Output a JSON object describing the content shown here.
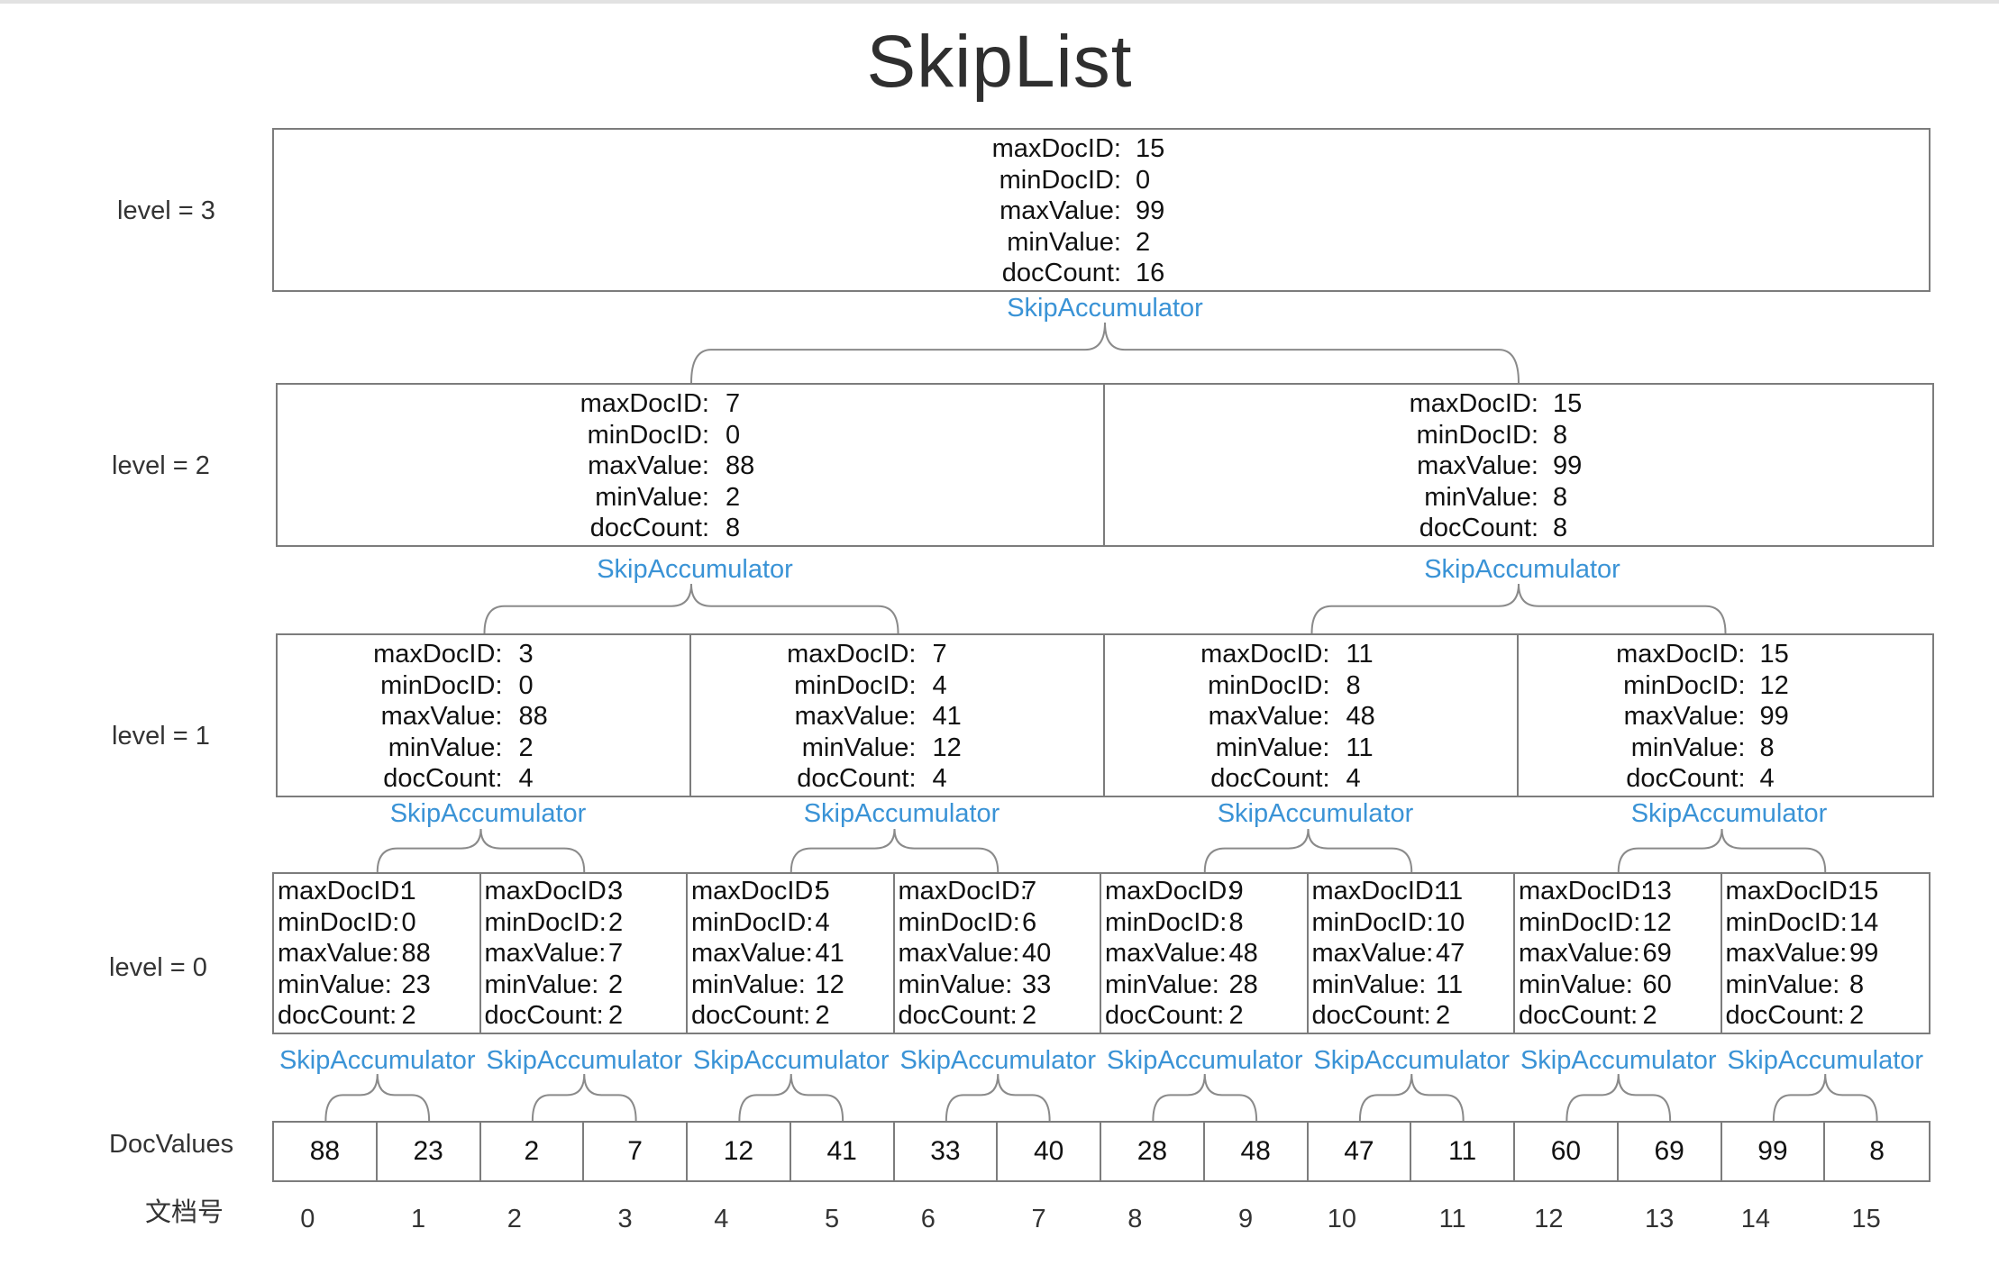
{
  "title": "SkipList",
  "fields": {
    "maxDocID": "maxDocID:",
    "minDocID": "minDocID:",
    "maxValue": "maxValue:",
    "minValue": "minValue:",
    "docCount": "docCount:"
  },
  "accumulator_label": "SkipAccumulator",
  "levels": [
    {
      "label": "level = 3",
      "nodes": [
        {
          "maxDocID": "15",
          "minDocID": "0",
          "maxValue": "99",
          "minValue": "2",
          "docCount": "16"
        }
      ]
    },
    {
      "label": "level = 2",
      "nodes": [
        {
          "maxDocID": "7",
          "minDocID": "0",
          "maxValue": "88",
          "minValue": "2",
          "docCount": "8"
        },
        {
          "maxDocID": "15",
          "minDocID": "8",
          "maxValue": "99",
          "minValue": "8",
          "docCount": "8"
        }
      ]
    },
    {
      "label": "level = 1",
      "nodes": [
        {
          "maxDocID": "3",
          "minDocID": "0",
          "maxValue": "88",
          "minValue": "2",
          "docCount": "4"
        },
        {
          "maxDocID": "7",
          "minDocID": "4",
          "maxValue": "41",
          "minValue": "12",
          "docCount": "4"
        },
        {
          "maxDocID": "11",
          "minDocID": "8",
          "maxValue": "48",
          "minValue": "11",
          "docCount": "4"
        },
        {
          "maxDocID": "15",
          "minDocID": "12",
          "maxValue": "99",
          "minValue": "8",
          "docCount": "4"
        }
      ]
    },
    {
      "label": "level = 0",
      "nodes": [
        {
          "maxDocID": "1",
          "minDocID": "0",
          "maxValue": "88",
          "minValue": "23",
          "docCount": "2"
        },
        {
          "maxDocID": "3",
          "minDocID": "2",
          "maxValue": "7",
          "minValue": "2",
          "docCount": "2"
        },
        {
          "maxDocID": "5",
          "minDocID": "4",
          "maxValue": "41",
          "minValue": "12",
          "docCount": "2"
        },
        {
          "maxDocID": "7",
          "minDocID": "6",
          "maxValue": "40",
          "minValue": "33",
          "docCount": "2"
        },
        {
          "maxDocID": "9",
          "minDocID": "8",
          "maxValue": "48",
          "minValue": "28",
          "docCount": "2"
        },
        {
          "maxDocID": "11",
          "minDocID": "10",
          "maxValue": "47",
          "minValue": "11",
          "docCount": "2"
        },
        {
          "maxDocID": "13",
          "minDocID": "12",
          "maxValue": "69",
          "minValue": "60",
          "docCount": "2"
        },
        {
          "maxDocID": "15",
          "minDocID": "14",
          "maxValue": "99",
          "minValue": "8",
          "docCount": "2"
        }
      ]
    }
  ],
  "docvalues_label": "DocValues",
  "docvalues": [
    "88",
    "23",
    "2",
    "7",
    "12",
    "41",
    "33",
    "40",
    "28",
    "48",
    "47",
    "11",
    "60",
    "69",
    "99",
    "8"
  ],
  "docnum_label": "文档号",
  "docnums": [
    "0",
    "1",
    "2",
    "3",
    "4",
    "5",
    "6",
    "7",
    "8",
    "9",
    "10",
    "11",
    "12",
    "13",
    "14",
    "15"
  ],
  "colors": {
    "accumulator": "#3a93d6",
    "border": "#7c7c7c",
    "text": "#111111"
  }
}
